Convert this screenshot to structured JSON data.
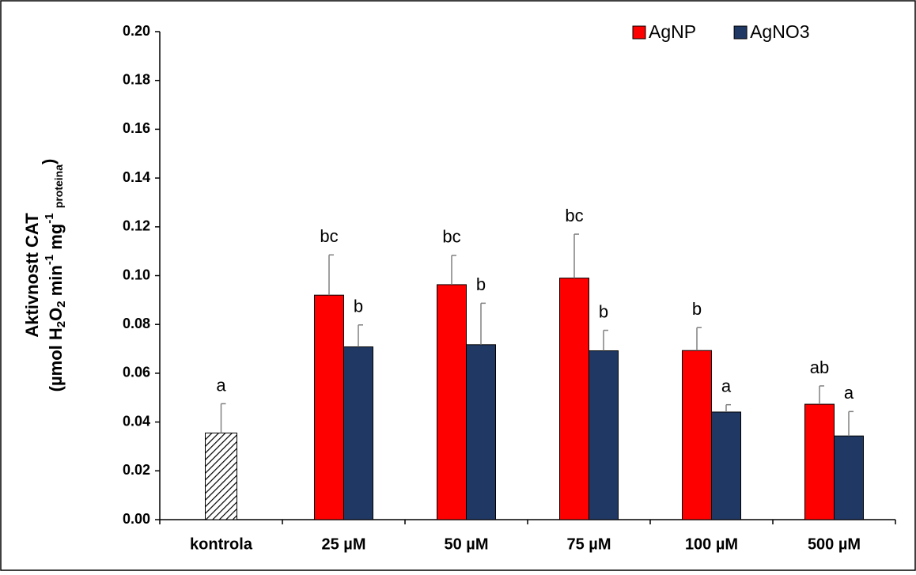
{
  "chart_data": {
    "type": "bar",
    "ylabel_line1": "Aktivnostt CAT",
    "ylabel_line2": [
      "(µmol H",
      "2",
      "O",
      "2",
      " min",
      "-1",
      " mg",
      "-1",
      " ",
      "proteina",
      ")"
    ],
    "categories": [
      "kontrola",
      "25 µM",
      "50 µM",
      "75 µM",
      "100 µM",
      "500 µM"
    ],
    "control": {
      "value": 0.0355,
      "error": 0.012,
      "letter": "a"
    },
    "series": [
      {
        "name": "AgNP",
        "color": "#ff0000",
        "values": [
          null,
          0.092,
          0.0963,
          0.099,
          0.0693,
          0.0473
        ],
        "errors": [
          null,
          0.0165,
          0.012,
          0.018,
          0.0094,
          0.0075
        ],
        "letters": [
          null,
          "bc",
          "bc",
          "bc",
          "b",
          "ab"
        ]
      },
      {
        "name": "AgNO3",
        "color": "#1f3864",
        "values": [
          null,
          0.0708,
          0.0717,
          0.0692,
          0.0441,
          0.0343
        ],
        "errors": [
          null,
          0.009,
          0.017,
          0.0084,
          0.003,
          0.01
        ],
        "letters": [
          null,
          "b",
          "b",
          "b",
          "a",
          "a"
        ]
      }
    ],
    "ylim": [
      0,
      0.2
    ],
    "yticks": [
      {
        "value": 0,
        "label": "0.00"
      },
      {
        "value": 0.02,
        "label": "0.02"
      },
      {
        "value": 0.04,
        "label": "0.04"
      },
      {
        "value": 0.06,
        "label": "0.06"
      },
      {
        "value": 0.08,
        "label": "0.08"
      },
      {
        "value": 0.1,
        "label": "0.10"
      },
      {
        "value": 0.12,
        "label": "0.12"
      },
      {
        "value": 0.14,
        "label": "0.14"
      },
      {
        "value": 0.16,
        "label": "0.16"
      },
      {
        "value": 0.18,
        "label": "0.18"
      },
      {
        "value": 0.2,
        "label": "0.20"
      }
    ],
    "legend": "top-right"
  }
}
